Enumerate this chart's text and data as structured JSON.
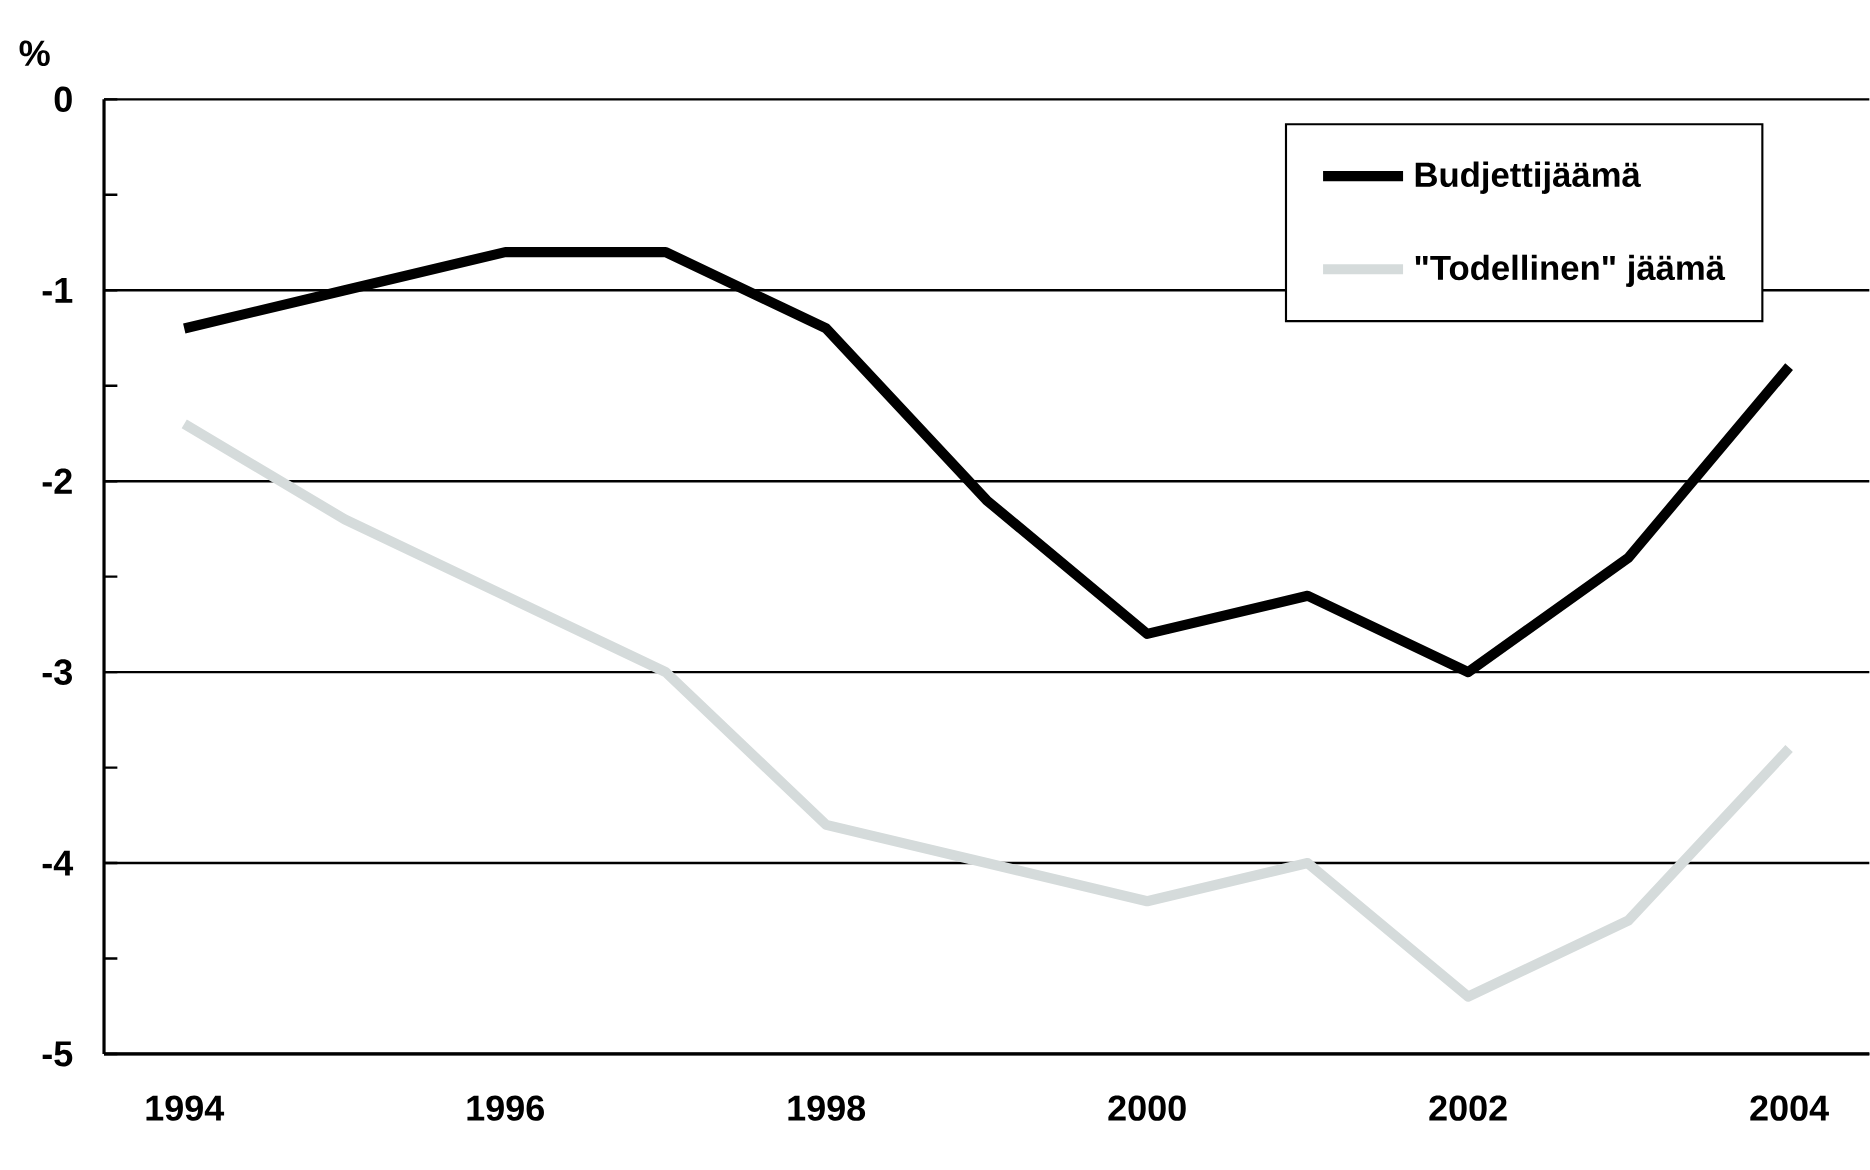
{
  "chart_data": {
    "type": "line",
    "ylabel": "%",
    "categories": [
      "1994",
      null,
      "1996",
      null,
      "1998",
      null,
      "2000",
      null,
      "2002",
      null,
      "2004"
    ],
    "series": [
      {
        "name": "Budjettijäämä",
        "color": "#000000",
        "values": [
          -1.2,
          -1.0,
          -0.8,
          -0.8,
          -1.2,
          -2.1,
          -2.8,
          -2.6,
          -3.0,
          -2.4,
          -1.4
        ]
      },
      {
        "name": "\"Todellinen\" jäämä",
        "color": "#d5dbdb",
        "values": [
          -1.7,
          -2.2,
          -2.6,
          -3.0,
          -3.8,
          -4.0,
          -4.2,
          -4.0,
          -4.7,
          -4.3,
          -3.4
        ]
      }
    ],
    "ylim": [
      -5,
      0
    ],
    "yticks": [
      0,
      {
        "value": -0.5,
        "label": null
      },
      -1,
      {
        "value": -1.5,
        "label": null
      },
      -2,
      {
        "value": -2.5,
        "label": null
      },
      -3,
      {
        "value": -3.5,
        "label": null
      },
      -4,
      {
        "value": -4.5,
        "label": null
      },
      -5
    ],
    "grid": "y",
    "legend": "top right",
    "marker": "none",
    "line_style": "solid"
  }
}
